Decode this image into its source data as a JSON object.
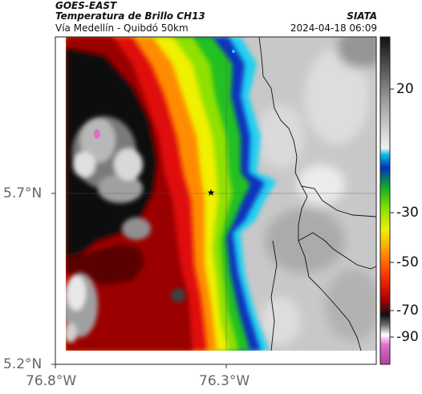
{
  "header": {
    "source": "GOES-EAST",
    "product": "Temperatura de Brillo CH13",
    "region": "Vía Medellín - Quibdó 50km",
    "brand": "SIATA",
    "datetime": "2024-04-18 06:09"
  },
  "axes": {
    "lat_labels": [
      "5.7°N",
      "5.2°N"
    ],
    "lon_labels": [
      "76.8°W",
      "76.3°W"
    ]
  },
  "colorbar": {
    "labels": [
      "20",
      "-30",
      "-50",
      "-70",
      "-90"
    ]
  },
  "map": {
    "marker": "star-icon",
    "colors": {
      "cold_tops": "#e070c0",
      "very_cold": "#1a1a1a",
      "red_band": "#d01010",
      "orange_band": "#ff8800",
      "yellow_band": "#f0f000",
      "green_band": "#20c020",
      "blue_band": "#1030c0",
      "cyan_band": "#10c0e0",
      "warm_ground": "#c8c8c8"
    }
  }
}
